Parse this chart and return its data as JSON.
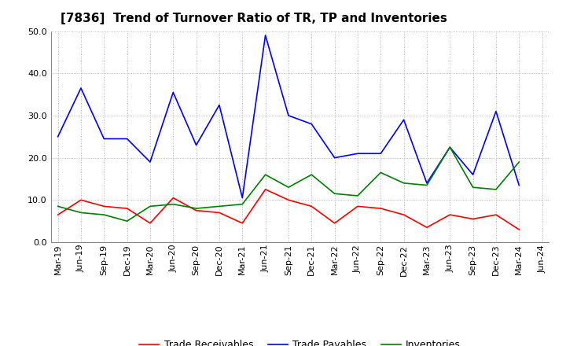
{
  "title": "[7836]  Trend of Turnover Ratio of TR, TP and Inventories",
  "x_labels": [
    "Mar-19",
    "Jun-19",
    "Sep-19",
    "Dec-19",
    "Mar-20",
    "Jun-20",
    "Sep-20",
    "Dec-20",
    "Mar-21",
    "Jun-21",
    "Sep-21",
    "Dec-21",
    "Mar-22",
    "Jun-22",
    "Sep-22",
    "Dec-22",
    "Mar-23",
    "Jun-23",
    "Sep-23",
    "Dec-23",
    "Mar-24",
    "Jun-24"
  ],
  "trade_receivables": [
    6.5,
    10.0,
    8.5,
    8.0,
    4.5,
    10.5,
    7.5,
    7.0,
    4.5,
    12.5,
    10.0,
    8.5,
    4.5,
    8.5,
    8.0,
    6.5,
    3.5,
    6.5,
    5.5,
    6.5,
    3.0,
    null
  ],
  "trade_payables": [
    25.0,
    36.5,
    24.5,
    24.5,
    19.0,
    35.5,
    23.0,
    32.5,
    10.5,
    49.0,
    30.0,
    28.0,
    20.0,
    21.0,
    21.0,
    29.0,
    14.0,
    22.5,
    16.0,
    31.0,
    13.5,
    null
  ],
  "inventories": [
    8.5,
    7.0,
    6.5,
    5.0,
    8.5,
    9.0,
    8.0,
    8.5,
    9.0,
    16.0,
    13.0,
    16.0,
    11.5,
    11.0,
    16.5,
    14.0,
    13.5,
    22.5,
    13.0,
    12.5,
    19.0,
    null
  ],
  "ylim": [
    0,
    50
  ],
  "yticks": [
    0.0,
    10.0,
    20.0,
    30.0,
    40.0,
    50.0
  ],
  "color_tr": "#ff0000",
  "color_tp": "#0000ff",
  "color_inv": "#008000",
  "legend_labels": [
    "Trade Receivables",
    "Trade Payables",
    "Inventories"
  ],
  "title_fontsize": 11,
  "label_fontsize": 8,
  "legend_fontsize": 9,
  "linewidth": 1.2
}
